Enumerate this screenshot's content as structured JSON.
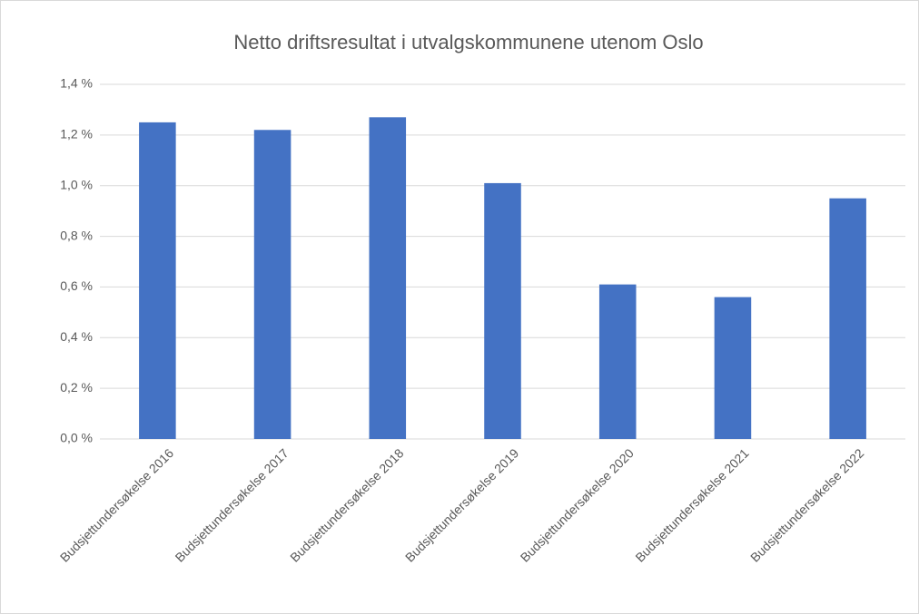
{
  "chart_data": {
    "type": "bar",
    "title": "Netto driftsresultat i utvalgskommunene utenom Oslo",
    "categories": [
      "Budsjettundersøkelse 2016",
      "Budsjettundersøkelse 2017",
      "Budsjettundersøkelse 2018",
      "Budsjettundersøkelse 2019",
      "Budsjettundersøkelse 2020",
      "Budsjettundersøkelse 2021",
      "Budsjettundersøkelse 2022"
    ],
    "values": [
      1.25,
      1.22,
      1.27,
      1.01,
      0.61,
      0.56,
      0.95
    ],
    "color": "#4472c4",
    "ylim": [
      0,
      1.4
    ],
    "yticks": [
      {
        "value": 0,
        "label": "0,0 %"
      },
      {
        "value": 0.2,
        "label": "0,2 %"
      },
      {
        "value": 0.4,
        "label": "0,4 %"
      },
      {
        "value": 0.6,
        "label": "0,6 %"
      },
      {
        "value": 0.8,
        "label": "0,8 %"
      },
      {
        "value": 1.0,
        "label": "1,0 %"
      },
      {
        "value": 1.2,
        "label": "1,2 %"
      },
      {
        "value": 1.4,
        "label": "1,4 %"
      }
    ],
    "grid": true
  }
}
